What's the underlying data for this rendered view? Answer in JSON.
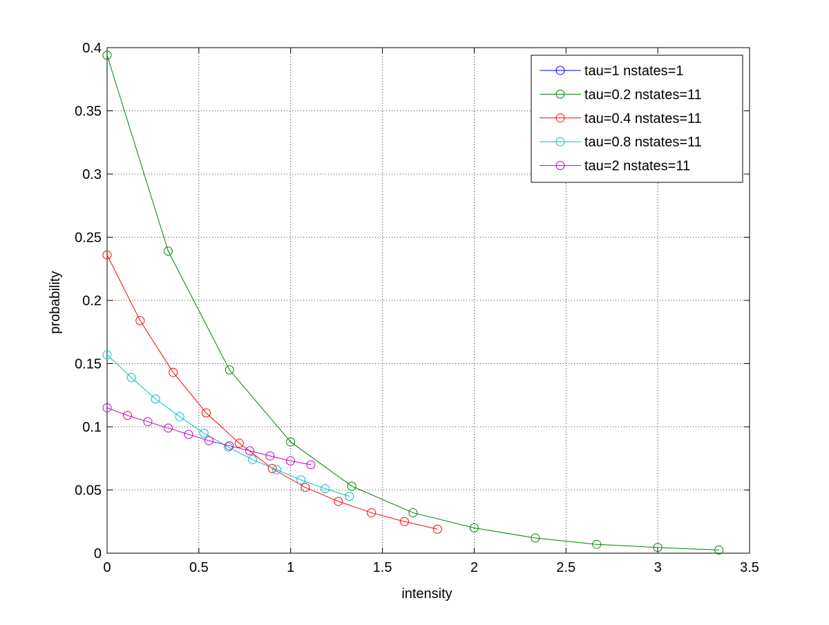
{
  "chart_data": {
    "type": "line",
    "title": "",
    "xlabel": "intensity",
    "ylabel": "probability",
    "xlim": [
      0,
      3.5
    ],
    "ylim": [
      0,
      0.4
    ],
    "xticks": [
      "0",
      "0.5",
      "1",
      "1.5",
      "2",
      "2.5",
      "3",
      "3.5"
    ],
    "yticks": [
      "0",
      "0.05",
      "0.1",
      "0.15",
      "0.2",
      "0.25",
      "0.3",
      "0.35",
      "0.4"
    ],
    "grid": true,
    "grid_style": "dotted",
    "legend_position": "top-right",
    "marker": "circle",
    "series": [
      {
        "name": "tau=1 nstates=1",
        "color": "#0000ff",
        "x": [],
        "y": []
      },
      {
        "name": "tau=0.2 nstates=11",
        "color": "#008000",
        "x": [
          0,
          0.333,
          0.667,
          1.0,
          1.333,
          1.667,
          2.0,
          2.333,
          2.667,
          3.0,
          3.333
        ],
        "y": [
          0.394,
          0.239,
          0.145,
          0.088,
          0.053,
          0.032,
          0.02,
          0.012,
          0.007,
          0.0045,
          0.0025
        ]
      },
      {
        "name": "tau=0.4 nstates=11",
        "color": "#ff0000",
        "x": [
          0,
          0.18,
          0.36,
          0.54,
          0.72,
          0.9,
          1.08,
          1.26,
          1.44,
          1.62,
          1.8
        ],
        "y": [
          0.236,
          0.184,
          0.143,
          0.111,
          0.087,
          0.067,
          0.052,
          0.041,
          0.032,
          0.025,
          0.019
        ]
      },
      {
        "name": "tau=0.8 nstates=11",
        "color": "#00bfbf",
        "x": [
          0,
          0.132,
          0.264,
          0.396,
          0.528,
          0.66,
          0.792,
          0.924,
          1.056,
          1.188,
          1.32
        ],
        "y": [
          0.157,
          0.139,
          0.122,
          0.108,
          0.095,
          0.084,
          0.074,
          0.066,
          0.058,
          0.051,
          0.045
        ]
      },
      {
        "name": "tau=2 nstates=11",
        "color": "#bf00bf",
        "x": [
          0,
          0.111,
          0.222,
          0.333,
          0.444,
          0.555,
          0.666,
          0.777,
          0.888,
          0.999,
          1.11
        ],
        "y": [
          0.115,
          0.109,
          0.104,
          0.099,
          0.094,
          0.089,
          0.085,
          0.081,
          0.077,
          0.073,
          0.07
        ]
      }
    ]
  }
}
